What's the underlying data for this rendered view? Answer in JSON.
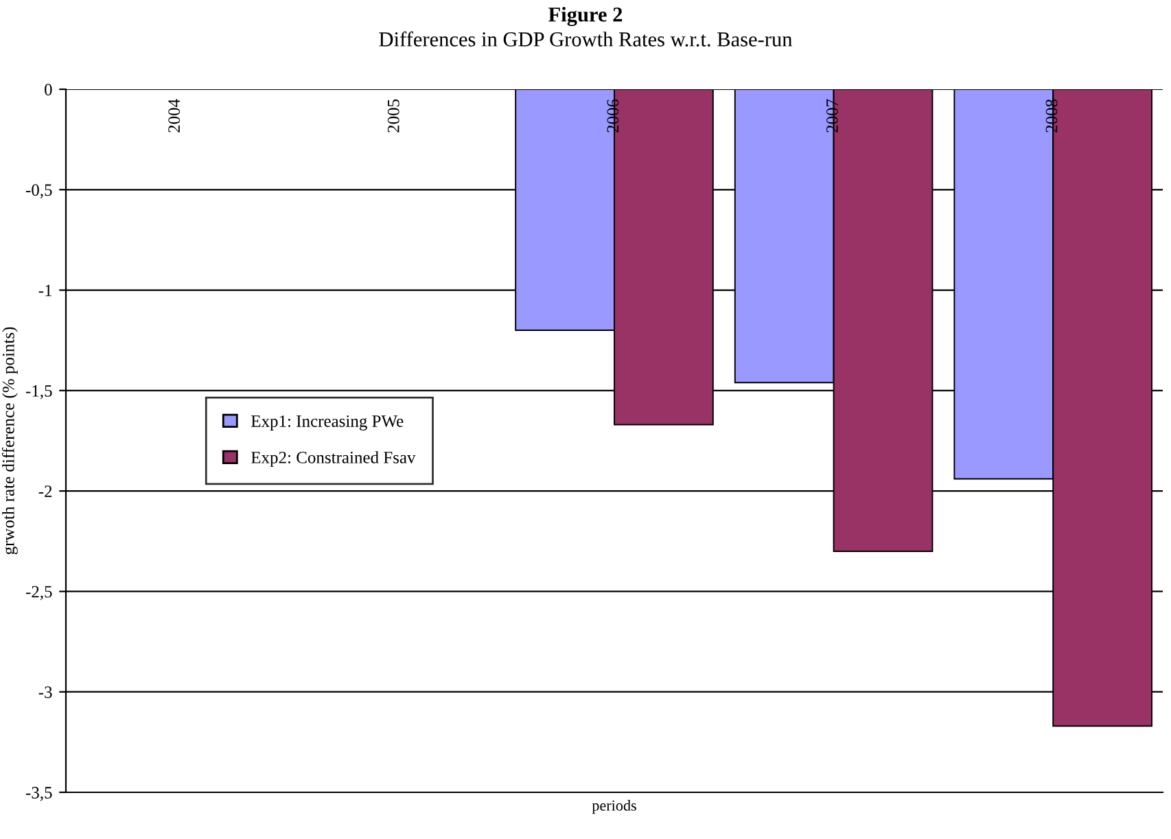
{
  "chart_data": {
    "type": "bar",
    "title": "Figure 2",
    "subtitle": "Differences in GDP Growth Rates w.r.t. Base-run",
    "xlabel": "periods",
    "ylabel": "grwoth rate difference (% points)",
    "categories": [
      "2004",
      "2005",
      "2006",
      "2007",
      "2008"
    ],
    "series": [
      {
        "name": "Exp1: Increasing PWe",
        "color": "#9999ff",
        "values": [
          null,
          null,
          -1.2,
          -1.46,
          -1.94
        ]
      },
      {
        "name": "Exp2: Constrained Fsav",
        "color": "#993366",
        "values": [
          null,
          null,
          -1.67,
          -2.3,
          -3.17
        ]
      }
    ],
    "ylim": [
      -3.5,
      0
    ],
    "yticks": [
      {
        "value": 0,
        "label": "0"
      },
      {
        "value": -0.5,
        "label": "-0,5"
      },
      {
        "value": -1,
        "label": "-1"
      },
      {
        "value": -1.5,
        "label": "-1,5"
      },
      {
        "value": -2,
        "label": "-2"
      },
      {
        "value": -2.5,
        "label": "-2,5"
      },
      {
        "value": -3,
        "label": "-3"
      },
      {
        "value": -3.5,
        "label": "-3,5"
      }
    ],
    "grid": "y",
    "legend": "center left"
  }
}
